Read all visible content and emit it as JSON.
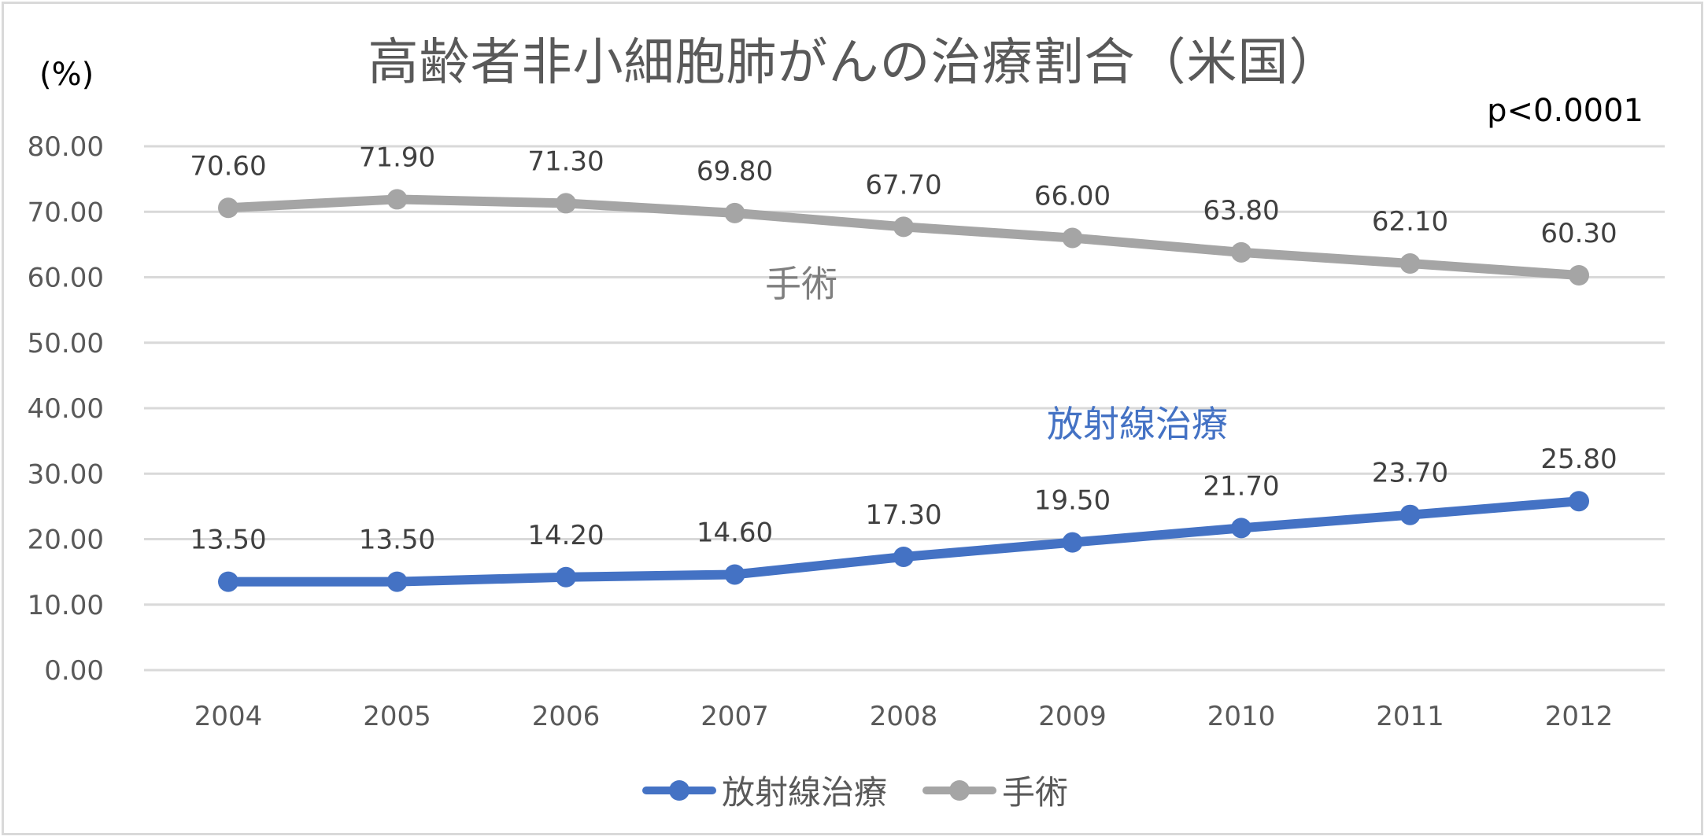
{
  "chart": {
    "title": "高齢者非小細胞肺がんの治療割合（米国）",
    "unit_label": "(%)",
    "annotation": "p<0.0001",
    "inline_labels": {
      "surgery": "手術",
      "radiation": "放射線治療"
    },
    "legend": [
      {
        "label": "放射線治療",
        "color": "#4472c4"
      },
      {
        "label": "手術",
        "color": "#a5a5a5"
      }
    ]
  },
  "chart_data": {
    "type": "line",
    "title": "高齢者非小細胞肺がんの治療割合（米国）",
    "xlabel": "",
    "ylabel": "(%)",
    "ylim": [
      0,
      80
    ],
    "yticks": [
      "0.00",
      "10.00",
      "20.00",
      "30.00",
      "40.00",
      "50.00",
      "60.00",
      "70.00",
      "80.00"
    ],
    "grid": true,
    "legend_position": "bottom",
    "annotations": [
      "p<0.0001",
      "手術",
      "放射線治療"
    ],
    "categories": [
      "2004",
      "2005",
      "2006",
      "2007",
      "2008",
      "2009",
      "2010",
      "2011",
      "2012"
    ],
    "series": [
      {
        "name": "放射線治療",
        "color": "#4472c4",
        "values": [
          13.5,
          13.5,
          14.2,
          14.6,
          17.3,
          19.5,
          21.7,
          23.7,
          25.8
        ],
        "labels": [
          "13.50",
          "13.50",
          "14.20",
          "14.60",
          "17.30",
          "19.50",
          "21.70",
          "23.70",
          "25.80"
        ]
      },
      {
        "name": "手術",
        "color": "#a5a5a5",
        "values": [
          70.6,
          71.9,
          71.3,
          69.8,
          67.7,
          66.0,
          63.8,
          62.1,
          60.3
        ],
        "labels": [
          "70.60",
          "71.90",
          "71.30",
          "69.80",
          "67.70",
          "66.00",
          "63.80",
          "62.10",
          "60.30"
        ]
      }
    ]
  }
}
